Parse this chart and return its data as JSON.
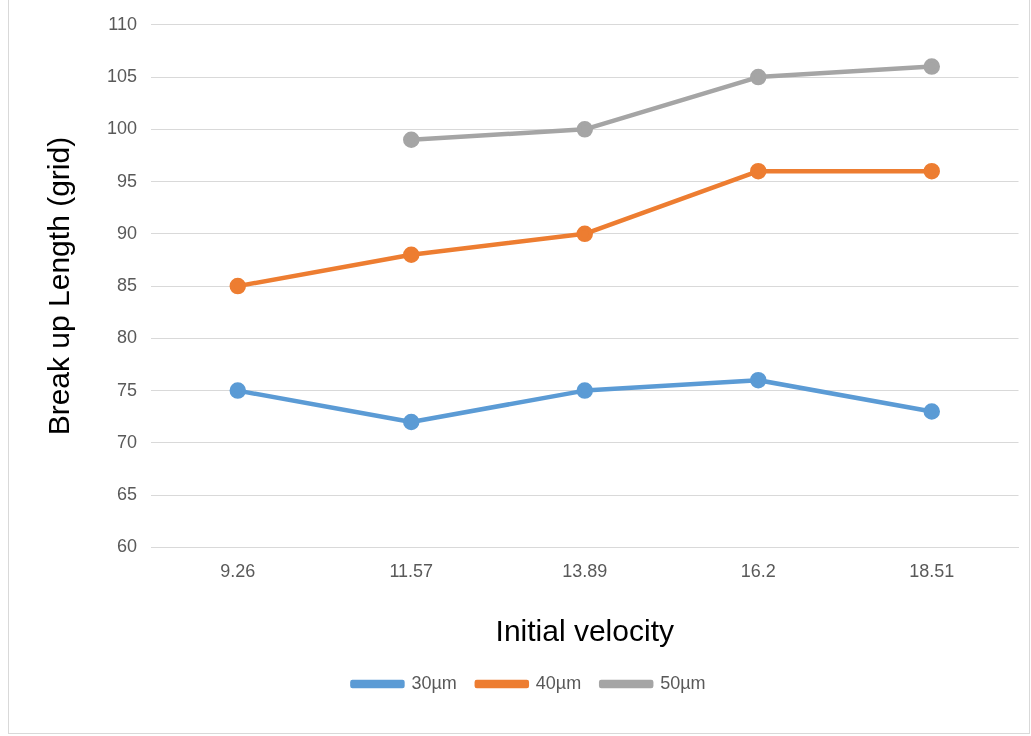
{
  "chart_data": {
    "type": "line",
    "xlabel": "Initial velocity",
    "ylabel": "Break up Length (grid)",
    "categories": [
      "9.26",
      "11.57",
      "13.89",
      "16.2",
      "18.51"
    ],
    "series": [
      {
        "name": "30µm",
        "color": "#5b9bd5",
        "values": [
          75,
          72,
          75,
          76,
          73
        ]
      },
      {
        "name": "40µm",
        "color": "#ed7d31",
        "values": [
          85,
          88,
          90,
          96,
          96
        ]
      },
      {
        "name": "50µm",
        "color": "#a5a5a5",
        "values": [
          null,
          99,
          100,
          105,
          106
        ]
      }
    ],
    "ylim": [
      60,
      110
    ],
    "yticks": [
      60,
      65,
      70,
      75,
      80,
      85,
      90,
      95,
      100,
      105,
      110
    ],
    "grid": "y",
    "legend": "bottom",
    "marker": "circle",
    "line_style": "solid"
  }
}
